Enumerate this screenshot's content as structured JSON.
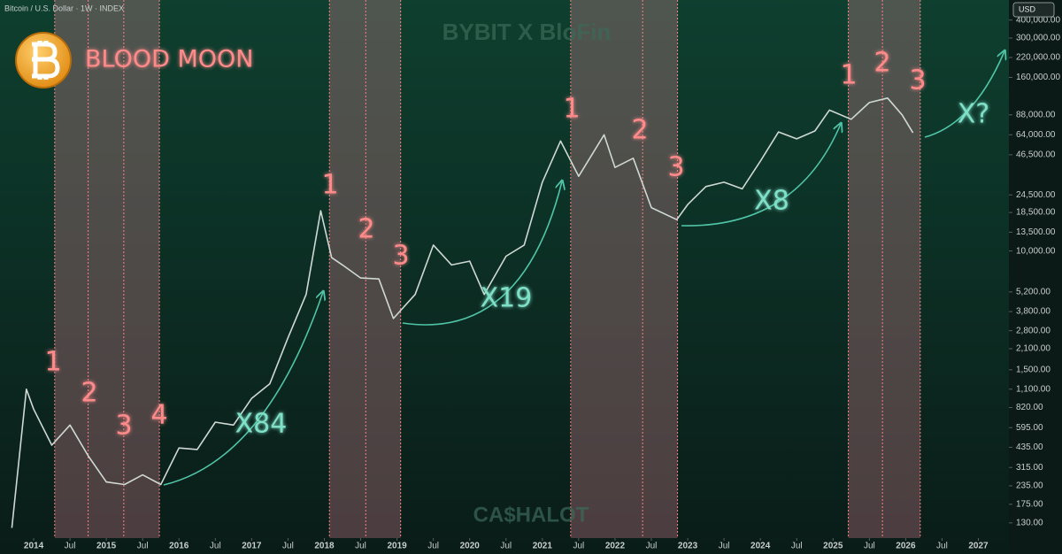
{
  "chart_data": {
    "type": "line",
    "title": "Bitcoin / U.S. Dollar · 1W · INDEX",
    "headline": "BLOOD MOON",
    "currency": "USD",
    "watermarks": [
      "BYBIT X BloFin",
      "CA$HALOT"
    ],
    "log_scale": true,
    "color": "#cfd8d3",
    "x": [
      2013.7,
      2013.9,
      2014.0,
      2014.25,
      2014.5,
      2014.75,
      2015.0,
      2015.25,
      2015.5,
      2015.75,
      2016.0,
      2016.25,
      2016.5,
      2016.75,
      2017.0,
      2017.25,
      2017.5,
      2017.75,
      2017.95,
      2018.1,
      2018.25,
      2018.5,
      2018.75,
      2018.95,
      2019.25,
      2019.5,
      2019.75,
      2020.0,
      2020.2,
      2020.5,
      2020.75,
      2021.0,
      2021.25,
      2021.5,
      2021.85,
      2022.0,
      2022.25,
      2022.5,
      2022.85,
      2023.0,
      2023.25,
      2023.5,
      2023.75,
      2024.0,
      2024.25,
      2024.5,
      2024.75,
      2024.95,
      2025.25,
      2025.5,
      2025.75,
      2025.95,
      2026.1
    ],
    "values": [
      120,
      1100,
      800,
      450,
      620,
      380,
      250,
      240,
      280,
      240,
      430,
      420,
      650,
      620,
      950,
      1200,
      2500,
      5000,
      19000,
      9000,
      8000,
      6500,
      6400,
      3400,
      5000,
      11000,
      8000,
      8500,
      5000,
      9200,
      11000,
      30000,
      58000,
      33000,
      64000,
      38000,
      44000,
      20000,
      16500,
      21000,
      28000,
      30000,
      27000,
      42000,
      67000,
      60000,
      68000,
      95000,
      82000,
      107000,
      115000,
      88000,
      66000
    ],
    "xlim": [
      2013.537,
      2027.42
    ],
    "ylim": [
      102,
      551000
    ],
    "xticks": [
      2014,
      {
        "value": 2014.5,
        "label": "Jul"
      },
      2015,
      {
        "value": 2015.5,
        "label": "Jul"
      },
      2016,
      {
        "value": 2016.5,
        "label": "Jul"
      },
      2017,
      {
        "value": 2017.5,
        "label": "Jul"
      },
      2018,
      {
        "value": 2018.5,
        "label": "Jul"
      },
      2019,
      {
        "value": 2019.5,
        "label": "Jul"
      },
      2020,
      {
        "value": 2020.5,
        "label": "Jul"
      },
      2021,
      {
        "value": 2021.5,
        "label": "Jul"
      },
      2022,
      {
        "value": 2022.5,
        "label": "Jul"
      },
      2023,
      {
        "value": 2023.5,
        "label": "Jul"
      },
      2024,
      {
        "value": 2024.5,
        "label": "Jul"
      },
      2025,
      {
        "value": 2025.5,
        "label": "Jul"
      },
      2026,
      {
        "value": 2026.5,
        "label": "Jul"
      },
      2027
    ],
    "yticks": [
      {
        "value": 130,
        "label": "130.00"
      },
      {
        "value": 175,
        "label": "175.00"
      },
      {
        "value": 235,
        "label": "235.00"
      },
      {
        "value": 315,
        "label": "315.00"
      },
      {
        "value": 435,
        "label": "435.00"
      },
      {
        "value": 595,
        "label": "595.00"
      },
      {
        "value": 820,
        "label": "820.00"
      },
      {
        "value": 1100,
        "label": "1,100.00"
      },
      {
        "value": 1500,
        "label": "1,500.00"
      },
      {
        "value": 2100,
        "label": "2,100.00"
      },
      {
        "value": 2800,
        "label": "2,800.00"
      },
      {
        "value": 3800,
        "label": "3,800.00"
      },
      {
        "value": 5200,
        "label": "5,200.00"
      },
      {
        "value": 10000,
        "label": "10,000.00"
      },
      {
        "value": 13500,
        "label": "13,500.00"
      },
      {
        "value": 18500,
        "label": "18,500.00"
      },
      {
        "value": 24500,
        "label": "24,500.00"
      },
      {
        "value": 46500,
        "label": "46,500.00"
      },
      {
        "value": 64000,
        "label": "64,000.00"
      },
      {
        "value": 88000,
        "label": "88,000.00"
      },
      {
        "value": 160000,
        "label": "160,000.00"
      },
      {
        "value": 220000,
        "label": "220,000.00"
      },
      {
        "value": 300000,
        "label": "300,000.00"
      },
      {
        "value": 400000,
        "label": "400,000.00"
      }
    ],
    "bands": [
      {
        "start": 2014.29,
        "end": 2015.73,
        "dividers": [
          2014.75,
          2015.24
        ]
      },
      {
        "start": 2018.07,
        "end": 2019.05,
        "dividers": [
          2018.57
        ]
      },
      {
        "start": 2021.39,
        "end": 2022.86,
        "dividers": [
          2022.38
        ]
      },
      {
        "start": 2025.21,
        "end": 2026.2,
        "dividers": [
          2025.68
        ]
      }
    ],
    "annotations": [
      "1",
      "2",
      "3",
      "4",
      "1",
      "2",
      "3",
      "1",
      "2",
      "3",
      "1",
      "2",
      "3",
      "X84",
      "X19",
      "X8",
      "X?"
    ]
  }
}
